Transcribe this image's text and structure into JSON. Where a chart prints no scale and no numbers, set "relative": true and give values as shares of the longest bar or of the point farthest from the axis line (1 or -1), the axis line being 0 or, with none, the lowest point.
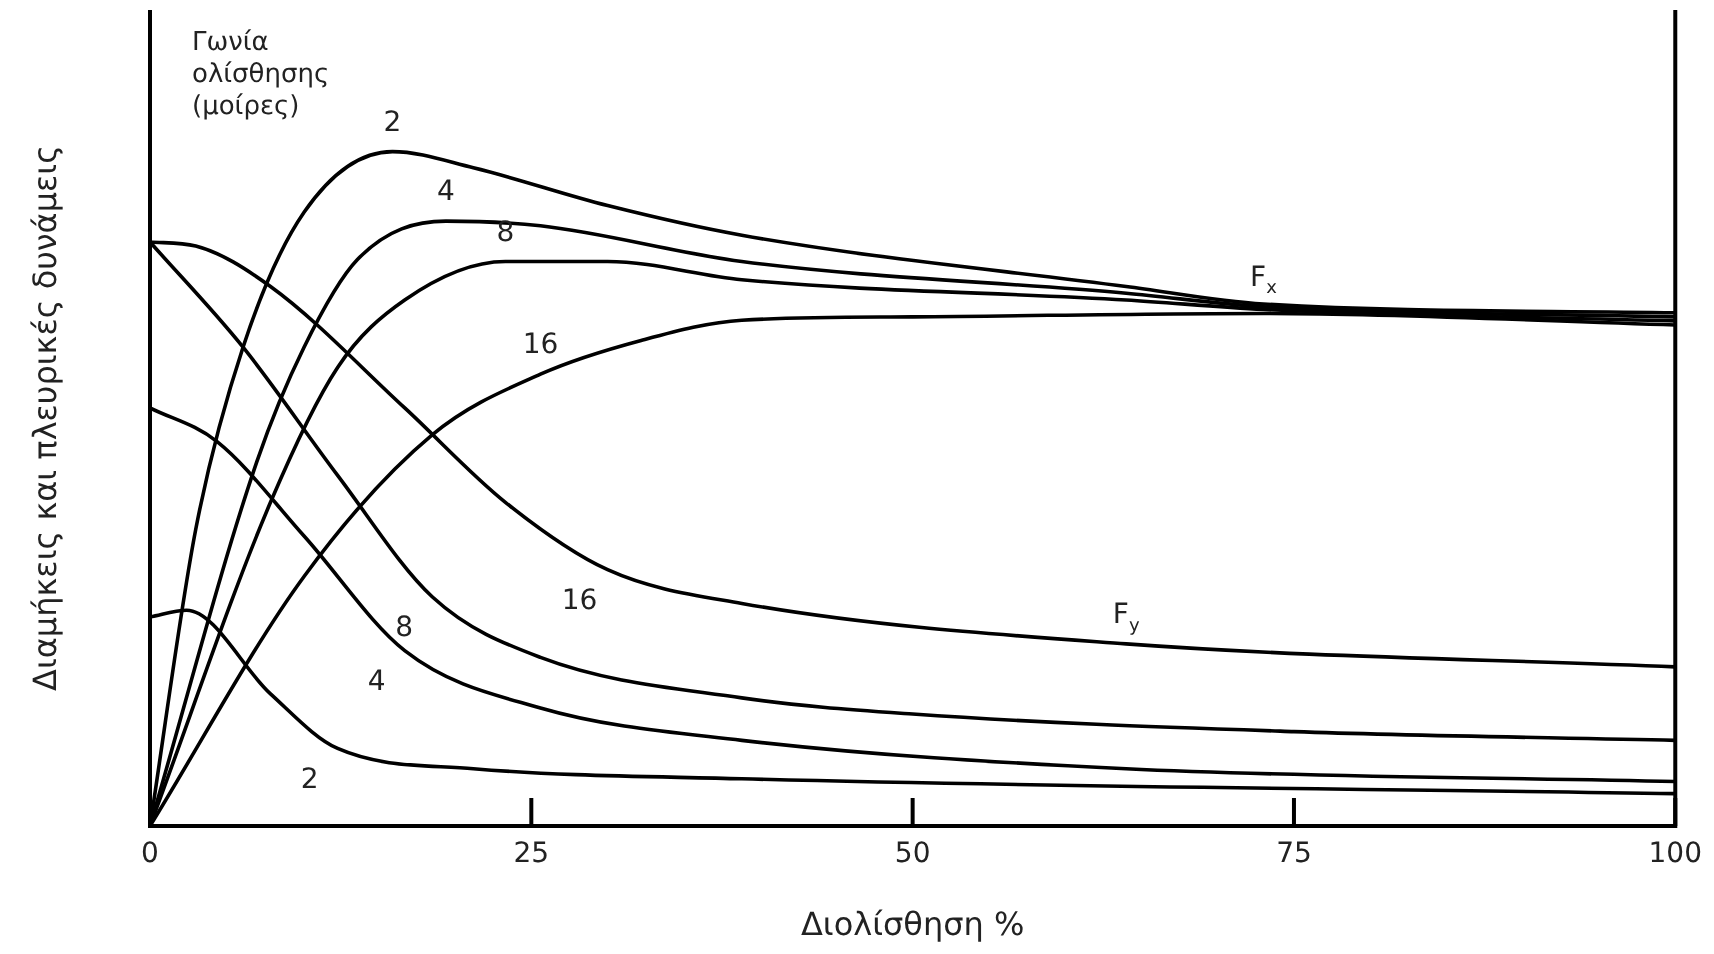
{
  "chart_data": {
    "type": "line",
    "relative": true,
    "xlabel": "Διολίσθηση %",
    "ylabel": "Διαμήκεις και πλευρικές δυνάμεις",
    "xlim": [
      0,
      100
    ],
    "xticks": [
      0,
      25,
      50,
      75,
      100
    ],
    "grid": false,
    "legend": false,
    "marker": "none",
    "line_style": "solid",
    "series": [
      {
        "color": "#000000",
        "x": [
          0,
          3,
          6.1,
          10.1,
          15.9,
          21.2,
          30,
          38.8,
          64,
          73,
          100
        ],
        "values": [
          0,
          0.44,
          0.71,
          0.91,
          1.0,
          0.976,
          0.92,
          0.876,
          0.8,
          0.774,
          0.761
        ]
      },
      {
        "color": "#000000",
        "x": [
          0,
          7,
          10.1,
          13.6,
          19.4,
          25.6,
          38.8,
          64,
          73,
          100
        ],
        "values": [
          0,
          0.54,
          0.71,
          0.84,
          0.897,
          0.89,
          0.837,
          0.79,
          0.77,
          0.755
        ]
      },
      {
        "color": "#000000",
        "x": [
          0,
          7.9,
          12.3,
          16.7,
          23.3,
          30,
          38.8,
          64,
          73,
          100
        ],
        "values": [
          0,
          0.48,
          0.68,
          0.78,
          0.837,
          0.837,
          0.81,
          0.78,
          0.766,
          0.749
        ]
      },
      {
        "color": "#000000",
        "x": [
          0,
          10.1,
          18.5,
          25.6,
          32.2,
          38.8,
          50,
          73,
          100
        ],
        "values": [
          0,
          0.37,
          0.58,
          0.67,
          0.72,
          0.75,
          0.755,
          0.76,
          0.743
        ]
      },
      {
        "color": "#000000",
        "x": [
          0,
          3,
          7.9,
          16.7,
          23.3,
          30,
          38.8,
          64,
          100
        ],
        "values": [
          0.866,
          0.86,
          0.8,
          0.62,
          0.48,
          0.38,
          0.33,
          0.27,
          0.236
        ]
      },
      {
        "color": "#000000",
        "x": [
          0,
          6.1,
          12.3,
          18.5,
          25.6,
          38.8,
          50,
          75,
          100
        ],
        "values": [
          0.866,
          0.71,
          0.52,
          0.34,
          0.25,
          0.19,
          0.166,
          0.14,
          0.127
        ]
      },
      {
        "color": "#000000",
        "x": [
          0,
          4.4,
          10.1,
          16.7,
          25.6,
          38.8,
          64,
          100
        ],
        "values": [
          0.62,
          0.57,
          0.43,
          0.26,
          0.175,
          0.127,
          0.085,
          0.066
        ]
      },
      {
        "color": "#000000",
        "x": [
          0,
          2.4,
          7.9,
          12.3,
          21.2,
          38.8,
          100
        ],
        "values": [
          0.31,
          0.32,
          0.196,
          0.115,
          0.085,
          0.07,
          0.048
        ]
      }
    ],
    "annotations": [
      "Γωνία ολίσθησης (μοίρες)",
      {
        "text": "2",
        "x": 15.9,
        "y": 1.0
      },
      {
        "text": "4",
        "x": 19.4,
        "y": 0.897
      },
      {
        "text": "8",
        "x": 23.3,
        "y": 0.837
      },
      {
        "text": "16",
        "x": 25.6,
        "y": 0.67
      },
      {
        "text": "F$_{x}$",
        "x": 73,
        "y": 0.77
      },
      {
        "text": "16",
        "x": 30,
        "y": 0.38
      },
      {
        "text": "8",
        "x": 18.5,
        "y": 0.34
      },
      {
        "text": "4",
        "x": 16.7,
        "y": 0.26
      },
      {
        "text": "2",
        "x": 12.3,
        "y": 0.115
      },
      {
        "text": "F$_{y}$",
        "x": 64,
        "y": 0.27
      }
    ]
  }
}
